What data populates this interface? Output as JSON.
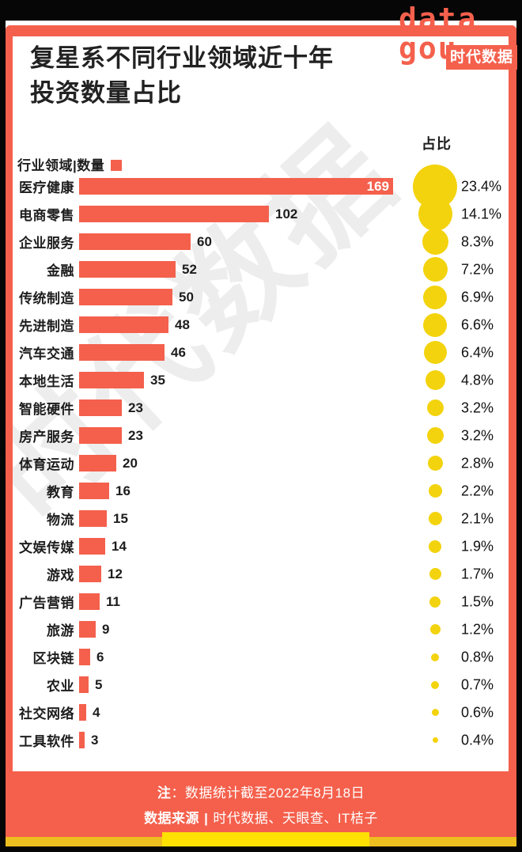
{
  "title_lines": [
    "复星系不同行业领域近十年",
    "投资数量占比"
  ],
  "logo": {
    "latin_line1": "data",
    "latin_line2": "gou",
    "cn_text": "时代数据"
  },
  "watermark_text": "时代数据",
  "chart_data": {
    "type": "bar",
    "title": "复星系不同行业领域近十年投资数量占比",
    "orientation": "horizontal",
    "header_left": "行业领域|数量",
    "header_right": "占比",
    "categories": [
      "医疗健康",
      "电商零售",
      "企业服务",
      "金融",
      "传统制造",
      "先进制造",
      "汽车交通",
      "本地生活",
      "智能硬件",
      "房产服务",
      "体育运动",
      "教育",
      "物流",
      "文娱传媒",
      "游戏",
      "广告营销",
      "旅游",
      "区块链",
      "农业",
      "社交网络",
      "工具软件"
    ],
    "values": [
      169,
      102,
      60,
      52,
      50,
      48,
      46,
      35,
      23,
      23,
      20,
      16,
      15,
      14,
      12,
      11,
      9,
      6,
      5,
      4,
      3
    ],
    "percents": [
      23.4,
      14.1,
      8.3,
      7.2,
      6.9,
      6.6,
      6.4,
      4.8,
      3.2,
      3.2,
      2.8,
      2.2,
      2.1,
      1.9,
      1.7,
      1.5,
      1.2,
      0.8,
      0.7,
      0.6,
      0.4
    ],
    "percent_labels": [
      "23.4%",
      "14.1%",
      "8.3%",
      "7.2%",
      "6.9%",
      "6.6%",
      "6.4%",
      "4.8%",
      "3.2%",
      "3.2%",
      "2.8%",
      "2.2%",
      "2.1%",
      "1.9%",
      "1.7%",
      "1.5%",
      "1.2%",
      "0.8%",
      "0.7%",
      "0.6%",
      "0.4%"
    ],
    "xlim": [
      0,
      169
    ],
    "value_label_inside_first_bar": true,
    "legend_square": "bar-color-swatch",
    "grid": false
  },
  "footer": {
    "note_label": "注",
    "note_colon": "：",
    "note_text": "数据统计截至2022年8月18日",
    "source_label": "数据来源",
    "source_sep": "|",
    "source_text": "时代数据、天眼查、IT桔子"
  },
  "colors": {
    "accent_coral": "#F4604C",
    "bubble_yellow": "#F3D30D",
    "footer_bar_gold": "#EDBE1F",
    "footer_tab_yellow": "#FFE003",
    "canvas_black": "#060606",
    "text_ink": "#1d1d1d"
  }
}
